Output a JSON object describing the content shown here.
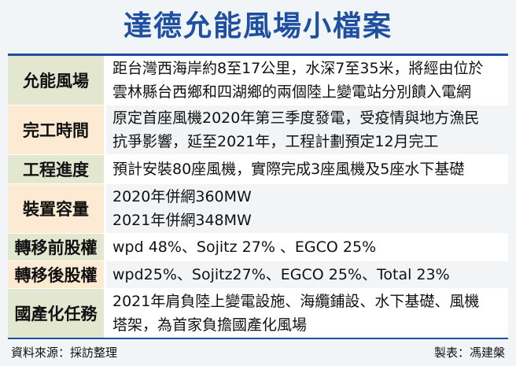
{
  "title": "達德允能風場小檔案",
  "rows": [
    {
      "label": "允能風場",
      "lines": [
        "距台灣西海岸約8至17公里，水深7至35米，將經由位於",
        "雲林縣台西鄉和四湖鄉的兩個陸上變電站分別饋入電網"
      ]
    },
    {
      "label": "完工時間",
      "lines": [
        "原定首座風機2020年第三季度發電，受疫情與地方漁民",
        "抗爭影響，延至2021年，工程計劃預定12月完工"
      ]
    },
    {
      "label": "工程進度",
      "lines": [
        "預計安裝80座風機，實際完成3座風機及5座水下基礎"
      ]
    },
    {
      "label": "裝置容量",
      "lines": [
        "2020年併網360MW",
        "2021年併網348MW"
      ]
    },
    {
      "label": "轉移前股權",
      "lines": [
        "wpd 48%、Sojitz 27% 、EGCO 25%"
      ]
    },
    {
      "label": "轉移後股權",
      "lines": [
        "wpd25%、Sojitz27%、EGCO 25%、Total 23%"
      ]
    },
    {
      "label": "國產化任務",
      "lines": [
        "2021年肩負陸上變電設施、海纜鋪設、水下基礎、風機",
        "塔架，為首家負擔國產化風場"
      ]
    }
  ],
  "footer": {
    "source": "資料來源：採訪整理",
    "maker": "製表：馮建槃"
  }
}
